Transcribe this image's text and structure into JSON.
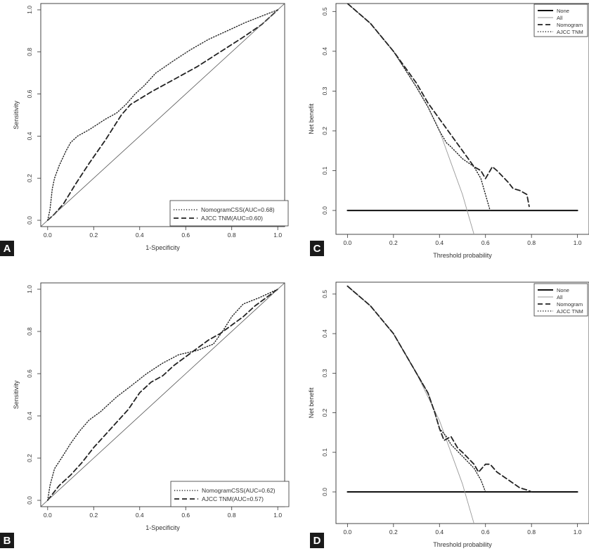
{
  "panels": {
    "A": {
      "letter": "A"
    },
    "B": {
      "letter": "B"
    },
    "C": {
      "letter": "C"
    },
    "D": {
      "letter": "D"
    }
  },
  "chart_data": [
    {
      "id": "A",
      "type": "line",
      "title": "",
      "xlabel": "1-Specificity",
      "ylabel": "Sensitivity",
      "xlim": [
        -0.03,
        1.03
      ],
      "ylim": [
        -0.03,
        1.03
      ],
      "x_ticks": [
        "0.0",
        "0.2",
        "0.4",
        "0.6",
        "0.8",
        "1.0"
      ],
      "y_ticks": [
        "0.0",
        "0.2",
        "0.4",
        "0.6",
        "0.8",
        "1.0"
      ],
      "grid": false,
      "legend_position": "bottom-right",
      "series": [
        {
          "name": "NomogramCSS(AUC=0.68)",
          "style": "dotted",
          "x": [
            0,
            0.01,
            0.02,
            0.03,
            0.05,
            0.08,
            0.1,
            0.13,
            0.18,
            0.25,
            0.3,
            0.34,
            0.38,
            0.42,
            0.47,
            0.55,
            0.62,
            0.7,
            0.78,
            0.86,
            0.93,
            1.0
          ],
          "y": [
            0,
            0.05,
            0.15,
            0.2,
            0.26,
            0.33,
            0.37,
            0.4,
            0.43,
            0.48,
            0.51,
            0.55,
            0.6,
            0.64,
            0.7,
            0.76,
            0.81,
            0.86,
            0.9,
            0.94,
            0.97,
            1.0
          ]
        },
        {
          "name": "AJCC TNM(AUC=0.60)",
          "style": "dashed",
          "x": [
            0,
            0.03,
            0.07,
            0.12,
            0.18,
            0.25,
            0.32,
            0.36,
            0.45,
            0.55,
            0.65,
            0.75,
            0.85,
            0.93,
            1.0
          ],
          "y": [
            0,
            0.03,
            0.08,
            0.17,
            0.27,
            0.38,
            0.5,
            0.55,
            0.61,
            0.67,
            0.73,
            0.8,
            0.87,
            0.93,
            1.0
          ]
        },
        {
          "name": "",
          "style": "reference",
          "x": [
            -0.03,
            1.03
          ],
          "y": [
            -0.03,
            1.03
          ]
        }
      ]
    },
    {
      "id": "B",
      "type": "line",
      "title": "",
      "xlabel": "1-Specificity",
      "ylabel": "Sensitivity",
      "xlim": [
        -0.03,
        1.03
      ],
      "ylim": [
        -0.03,
        1.03
      ],
      "x_ticks": [
        "0.0",
        "0.2",
        "0.4",
        "0.6",
        "0.8",
        "1.0"
      ],
      "y_ticks": [
        "0.0",
        "0.2",
        "0.4",
        "0.6",
        "0.8",
        "1.0"
      ],
      "grid": false,
      "legend_position": "bottom-right",
      "series": [
        {
          "name": "NomogramCSS(AUC=0.62)",
          "style": "dotted",
          "x": [
            0,
            0.01,
            0.03,
            0.06,
            0.1,
            0.14,
            0.18,
            0.23,
            0.3,
            0.36,
            0.43,
            0.5,
            0.57,
            0.65,
            0.72,
            0.76,
            0.8,
            0.85,
            0.92,
            1.0
          ],
          "y": [
            0,
            0.07,
            0.15,
            0.2,
            0.27,
            0.33,
            0.38,
            0.42,
            0.49,
            0.54,
            0.6,
            0.65,
            0.69,
            0.71,
            0.74,
            0.8,
            0.87,
            0.93,
            0.96,
            1.0
          ]
        },
        {
          "name": "AJCC TNM(AUC=0.57)",
          "style": "dashed",
          "x": [
            0,
            0.05,
            0.1,
            0.15,
            0.2,
            0.25,
            0.3,
            0.35,
            0.4,
            0.45,
            0.5,
            0.55,
            0.6,
            0.65,
            0.7,
            0.75,
            0.8,
            0.85,
            0.9,
            0.95,
            1.0
          ],
          "y": [
            0,
            0.07,
            0.12,
            0.18,
            0.25,
            0.31,
            0.37,
            0.43,
            0.51,
            0.56,
            0.59,
            0.64,
            0.68,
            0.72,
            0.76,
            0.79,
            0.83,
            0.87,
            0.92,
            0.96,
            1.0
          ]
        },
        {
          "name": "",
          "style": "reference",
          "x": [
            -0.03,
            1.03
          ],
          "y": [
            -0.03,
            1.03
          ]
        }
      ]
    },
    {
      "id": "C",
      "type": "line",
      "title": "",
      "xlabel": "Threshold probability",
      "ylabel": "Net benefit",
      "xlim": [
        -0.05,
        1.05
      ],
      "ylim": [
        -0.06,
        0.52
      ],
      "x_ticks": [
        "0.0",
        "0.2",
        "0.4",
        "0.6",
        "0.8",
        "1.0"
      ],
      "y_ticks": [
        "0.0",
        "0.1",
        "0.2",
        "0.3",
        "0.4",
        "0.5"
      ],
      "grid": false,
      "legend_position": "top-right",
      "series": [
        {
          "name": "None",
          "style": "solid-thick",
          "x": [
            0,
            1.0
          ],
          "y": [
            0,
            0
          ]
        },
        {
          "name": "All",
          "style": "solid-thin",
          "x": [
            0,
            0.1,
            0.2,
            0.3,
            0.35,
            0.4,
            0.45,
            0.5,
            0.53,
            0.55
          ],
          "y": [
            0.52,
            0.47,
            0.4,
            0.31,
            0.26,
            0.2,
            0.12,
            0.04,
            -0.02,
            -0.06
          ]
        },
        {
          "name": "Nomogram",
          "style": "dashed",
          "x": [
            0,
            0.1,
            0.2,
            0.3,
            0.35,
            0.4,
            0.45,
            0.5,
            0.55,
            0.58,
            0.6,
            0.62,
            0.63,
            0.65,
            0.7,
            0.72,
            0.75,
            0.78,
            0.79
          ],
          "y": [
            0.52,
            0.47,
            0.4,
            0.32,
            0.27,
            0.23,
            0.19,
            0.15,
            0.11,
            0.1,
            0.08,
            0.1,
            0.11,
            0.1,
            0.07,
            0.055,
            0.05,
            0.04,
            0.01
          ]
        },
        {
          "name": "AJCC TNM",
          "style": "dotted",
          "x": [
            0,
            0.1,
            0.2,
            0.3,
            0.35,
            0.4,
            0.43,
            0.45,
            0.5,
            0.55,
            0.58,
            0.6,
            0.62
          ],
          "y": [
            0.52,
            0.47,
            0.4,
            0.31,
            0.26,
            0.2,
            0.17,
            0.16,
            0.13,
            0.11,
            0.08,
            0.04,
            0.0
          ]
        }
      ]
    },
    {
      "id": "D",
      "type": "line",
      "title": "",
      "xlabel": "Threshold probability",
      "ylabel": "Net benefit",
      "xlim": [
        -0.05,
        1.05
      ],
      "ylim": [
        -0.08,
        0.53
      ],
      "x_ticks": [
        "0.0",
        "0.2",
        "0.4",
        "0.6",
        "0.8",
        "1.0"
      ],
      "y_ticks": [
        "0.0",
        "0.1",
        "0.2",
        "0.3",
        "0.4",
        "0.5"
      ],
      "grid": false,
      "legend_position": "top-right",
      "series": [
        {
          "name": "None",
          "style": "solid-thick",
          "x": [
            0,
            1.0
          ],
          "y": [
            0,
            0
          ]
        },
        {
          "name": "All",
          "style": "solid-thin",
          "x": [
            0,
            0.1,
            0.2,
            0.3,
            0.35,
            0.4,
            0.45,
            0.5,
            0.53,
            0.55
          ],
          "y": [
            0.52,
            0.47,
            0.4,
            0.3,
            0.24,
            0.18,
            0.1,
            0.02,
            -0.04,
            -0.08
          ]
        },
        {
          "name": "Nomogram",
          "style": "dashed",
          "x": [
            0,
            0.1,
            0.2,
            0.3,
            0.35,
            0.38,
            0.4,
            0.42,
            0.45,
            0.48,
            0.5,
            0.55,
            0.57,
            0.6,
            0.62,
            0.65,
            0.7,
            0.75,
            0.78,
            0.8
          ],
          "y": [
            0.52,
            0.47,
            0.4,
            0.3,
            0.25,
            0.2,
            0.16,
            0.13,
            0.14,
            0.11,
            0.1,
            0.07,
            0.05,
            0.07,
            0.07,
            0.05,
            0.03,
            0.01,
            0.005,
            0.0
          ]
        },
        {
          "name": "AJCC TNM",
          "style": "dotted",
          "x": [
            0,
            0.1,
            0.2,
            0.3,
            0.35,
            0.38,
            0.4,
            0.43,
            0.45,
            0.5,
            0.55,
            0.58,
            0.6
          ],
          "y": [
            0.52,
            0.47,
            0.4,
            0.3,
            0.25,
            0.2,
            0.16,
            0.14,
            0.12,
            0.09,
            0.06,
            0.03,
            0.0
          ]
        }
      ]
    }
  ]
}
